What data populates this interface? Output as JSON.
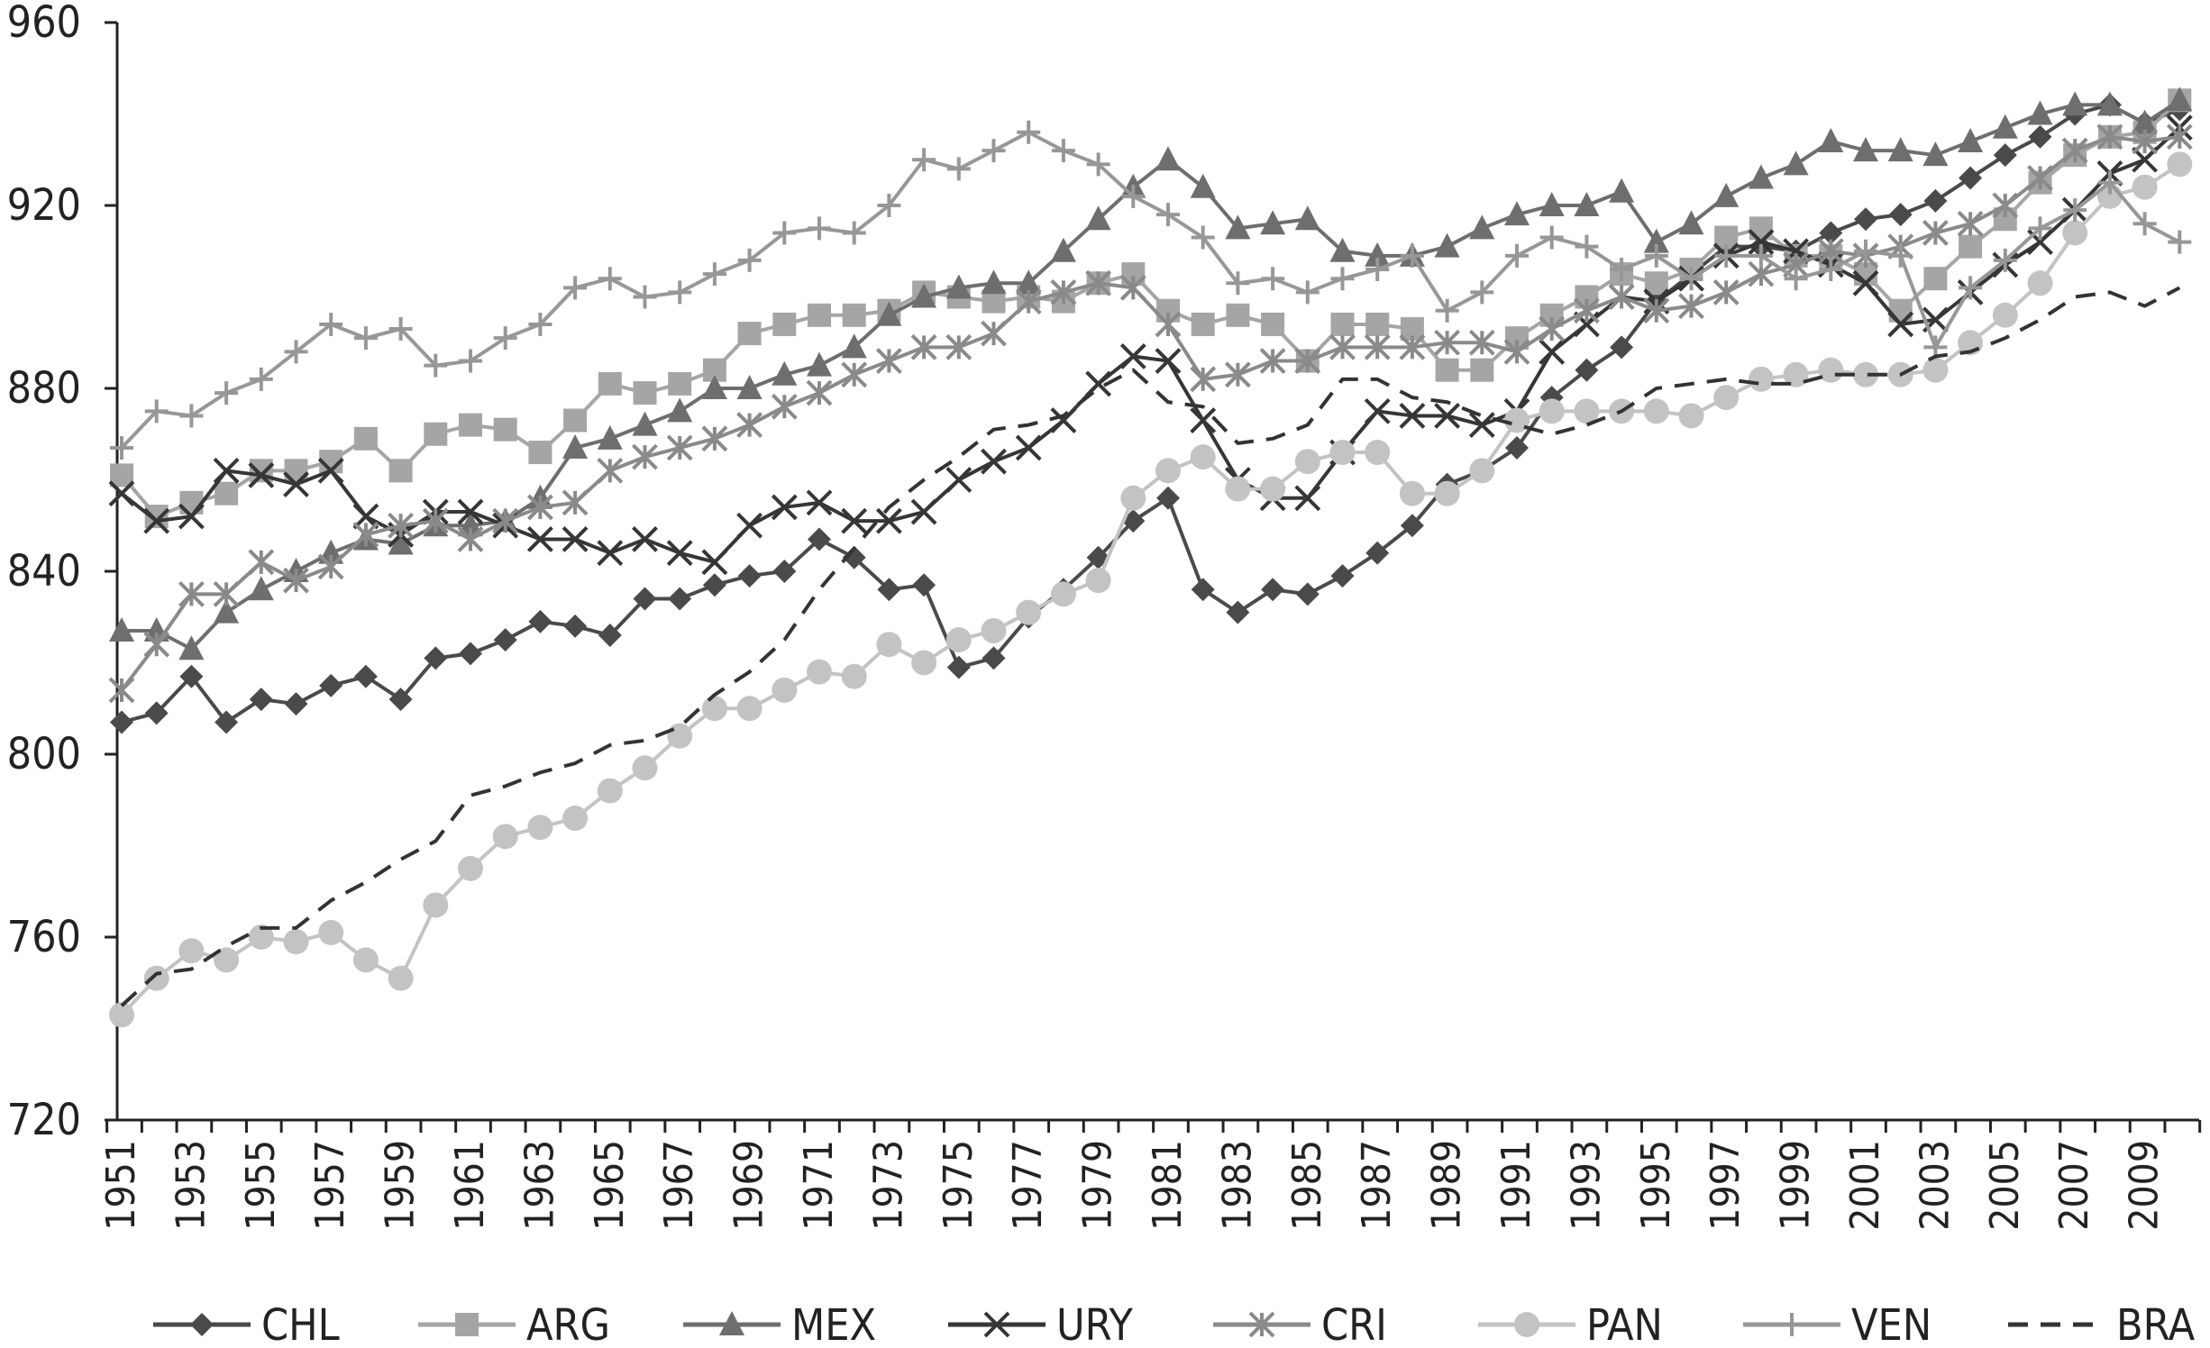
{
  "chart_data": {
    "type": "line",
    "title": "",
    "xlabel": "",
    "ylabel": "",
    "ylim": [
      720,
      960
    ],
    "yticks": [
      720,
      760,
      800,
      840,
      880,
      920,
      960
    ],
    "xlim": [
      1951,
      2010
    ],
    "xtick_labels": [
      "1951",
      "1953",
      "1955",
      "1957",
      "1959",
      "1961",
      "1963",
      "1965",
      "1967",
      "1969",
      "1971",
      "1973",
      "1975",
      "1977",
      "1979",
      "1981",
      "1983",
      "1985",
      "1987",
      "1989",
      "1991",
      "1993",
      "1995",
      "1997",
      "1999",
      "2001",
      "2003",
      "2005",
      "2007",
      "2009"
    ],
    "grid": false,
    "legend_position": "bottom",
    "x": [
      1951,
      1952,
      1953,
      1954,
      1955,
      1956,
      1957,
      1958,
      1959,
      1960,
      1961,
      1962,
      1963,
      1964,
      1965,
      1966,
      1967,
      1968,
      1969,
      1970,
      1971,
      1972,
      1973,
      1974,
      1975,
      1976,
      1977,
      1978,
      1979,
      1980,
      1981,
      1982,
      1983,
      1984,
      1985,
      1986,
      1987,
      1988,
      1989,
      1990,
      1991,
      1992,
      1993,
      1994,
      1995,
      1996,
      1997,
      1998,
      1999,
      2000,
      2001,
      2002,
      2003,
      2004,
      2005,
      2006,
      2007,
      2008,
      2009,
      2010
    ],
    "series": [
      {
        "name": "CHL",
        "marker": "diamond",
        "color": "#4a4a4a",
        "dash": "",
        "values": [
          807,
          809,
          817,
          807,
          812,
          811,
          815,
          817,
          812,
          821,
          822,
          825,
          829,
          828,
          826,
          834,
          834,
          837,
          839,
          840,
          847,
          843,
          836,
          837,
          819,
          821,
          830,
          836,
          843,
          851,
          856,
          836,
          831,
          836,
          835,
          839,
          844,
          850,
          859,
          862,
          867,
          878,
          884,
          889,
          899,
          905,
          911,
          911,
          910,
          914,
          917,
          918,
          921,
          926,
          931,
          935,
          940,
          942,
          938,
          941
        ]
      },
      {
        "name": "ARG",
        "marker": "square",
        "color": "#a5a5a5",
        "dash": "",
        "values": [
          861,
          852,
          855,
          857,
          862,
          862,
          864,
          869,
          862,
          870,
          872,
          871,
          866,
          873,
          881,
          879,
          881,
          884,
          892,
          894,
          896,
          896,
          897,
          901,
          900,
          899,
          900,
          899,
          903,
          905,
          897,
          894,
          896,
          894,
          886,
          894,
          894,
          893,
          884,
          884,
          891,
          896,
          900,
          905,
          903,
          906,
          913,
          915,
          909,
          909,
          905,
          897,
          904,
          911,
          917,
          925,
          931,
          935,
          936,
          943
        ]
      },
      {
        "name": "MEX",
        "marker": "triangle",
        "color": "#6e6e6e",
        "dash": "",
        "values": [
          827,
          827,
          823,
          831,
          836,
          840,
          844,
          847,
          846,
          850,
          850,
          851,
          856,
          867,
          869,
          872,
          875,
          880,
          880,
          883,
          885,
          889,
          896,
          900,
          902,
          903,
          903,
          910,
          917,
          924,
          930,
          924,
          915,
          916,
          917,
          910,
          909,
          909,
          911,
          915,
          918,
          920,
          920,
          923,
          912,
          916,
          922,
          926,
          929,
          934,
          932,
          932,
          931,
          934,
          937,
          940,
          942,
          942,
          938,
          943
        ]
      },
      {
        "name": "URY",
        "marker": "cross",
        "color": "#363636",
        "dash": "",
        "values": [
          857,
          851,
          852,
          862,
          861,
          859,
          862,
          852,
          848,
          853,
          853,
          850,
          847,
          847,
          844,
          847,
          844,
          842,
          850,
          854,
          855,
          851,
          851,
          853,
          860,
          864,
          867,
          873,
          881,
          887,
          886,
          873,
          860,
          856,
          856,
          866,
          875,
          874,
          874,
          872,
          875,
          888,
          894,
          900,
          899,
          904,
          909,
          912,
          910,
          907,
          903,
          894,
          895,
          901,
          907,
          912,
          919,
          927,
          930,
          937
        ]
      },
      {
        "name": "CRI",
        "marker": "asterisk",
        "color": "#8a8a8a",
        "dash": "",
        "values": [
          814,
          824,
          835,
          835,
          842,
          838,
          841,
          848,
          850,
          851,
          847,
          851,
          854,
          855,
          862,
          865,
          867,
          869,
          872,
          876,
          879,
          883,
          886,
          889,
          889,
          892,
          899,
          901,
          903,
          902,
          894,
          882,
          883,
          886,
          886,
          889,
          889,
          889,
          890,
          890,
          888,
          893,
          897,
          900,
          897,
          898,
          901,
          905,
          907,
          910,
          909,
          911,
          914,
          916,
          920,
          926,
          932,
          935,
          934,
          935
        ]
      },
      {
        "name": "PAN",
        "marker": "circle",
        "color": "#c3c3c3",
        "dash": "",
        "values": [
          743,
          751,
          757,
          755,
          760,
          759,
          761,
          755,
          751,
          767,
          775,
          782,
          784,
          786,
          792,
          797,
          804,
          810,
          810,
          814,
          818,
          817,
          824,
          820,
          825,
          827,
          831,
          835,
          838,
          856,
          862,
          865,
          858,
          858,
          864,
          866,
          866,
          857,
          857,
          862,
          873,
          875,
          875,
          875,
          875,
          874,
          878,
          882,
          883,
          884,
          883,
          883,
          884,
          890,
          896,
          903,
          914,
          922,
          924,
          929
        ]
      },
      {
        "name": "VEN",
        "marker": "plus",
        "color": "#979797",
        "dash": "",
        "values": [
          867,
          875,
          874,
          879,
          882,
          888,
          894,
          891,
          893,
          885,
          886,
          891,
          894,
          902,
          904,
          900,
          901,
          905,
          908,
          914,
          915,
          914,
          920,
          930,
          928,
          932,
          936,
          932,
          929,
          922,
          918,
          913,
          903,
          904,
          901,
          904,
          906,
          909,
          897,
          901,
          909,
          913,
          911,
          906,
          909,
          904,
          909,
          909,
          904,
          906,
          910,
          909,
          889,
          902,
          908,
          915,
          919,
          925,
          916,
          912
        ]
      },
      {
        "name": "BRA",
        "marker": "none",
        "color": "#333333",
        "dash": "22,14",
        "values": [
          745,
          752,
          753,
          758,
          762,
          762,
          768,
          772,
          777,
          781,
          791,
          793,
          796,
          798,
          802,
          803,
          806,
          813,
          818,
          825,
          836,
          845,
          854,
          860,
          865,
          871,
          872,
          874,
          880,
          884,
          877,
          876,
          868,
          869,
          872,
          882,
          882,
          878,
          877,
          874,
          872,
          870,
          872,
          875,
          880,
          881,
          882,
          881,
          881,
          883,
          883,
          883,
          887,
          888,
          891,
          895,
          900,
          901,
          898,
          902
        ]
      }
    ]
  }
}
